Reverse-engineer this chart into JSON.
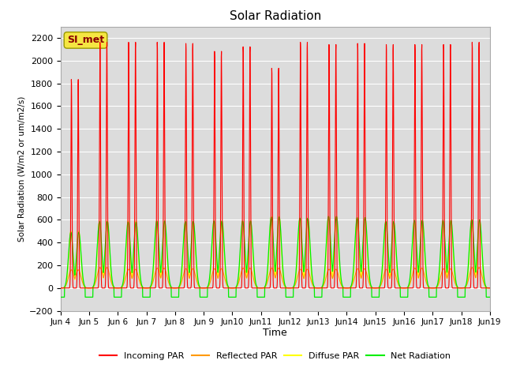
{
  "title": "Solar Radiation",
  "xlabel": "Time",
  "ylabel": "Solar Radiation (W/m2 or um/m2/s)",
  "ylim": [
    -200,
    2300
  ],
  "yticks": [
    -200,
    0,
    200,
    400,
    600,
    800,
    1000,
    1200,
    1400,
    1600,
    1800,
    2000,
    2200
  ],
  "x_start_day": 4,
  "x_end_day": 19,
  "x_tick_days": [
    4,
    5,
    6,
    7,
    8,
    9,
    10,
    11,
    12,
    13,
    14,
    15,
    16,
    17,
    18,
    19
  ],
  "station_label": "SI_met",
  "colors": {
    "incoming": "#ff0000",
    "reflected": "#ff9900",
    "diffuse": "#ffff00",
    "net": "#00ee00"
  },
  "legend_labels": [
    "Incoming PAR",
    "Reflected PAR",
    "Diffuse PAR",
    "Net Radiation"
  ],
  "bg_color": "#dcdcdc",
  "grid_color": "#ffffff",
  "num_days": 15,
  "pts_per_day": 144,
  "incoming_peaks": [
    1850,
    2180,
    2180,
    2180,
    2170,
    2100,
    2140,
    1950,
    2180,
    2160,
    2170,
    2160,
    2160,
    2160,
    2180
  ],
  "reflected_peaks": [
    160,
    180,
    165,
    175,
    170,
    170,
    175,
    175,
    165,
    165,
    170,
    165,
    175,
    170,
    180
  ],
  "diffuse_peaks": [
    500,
    590,
    590,
    590,
    585,
    590,
    590,
    630,
    615,
    625,
    620,
    585,
    590,
    590,
    600
  ],
  "net_peaks": [
    490,
    585,
    580,
    590,
    585,
    590,
    590,
    625,
    615,
    630,
    620,
    585,
    595,
    595,
    600
  ],
  "night_net": -80
}
